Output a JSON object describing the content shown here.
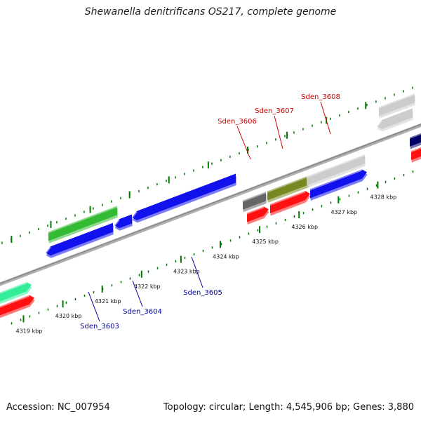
{
  "title": "Shewanella denitrificans OS217, complete genome",
  "footer": {
    "accession": "Accession: NC_007954",
    "summary": "Topology: circular; Length: 4,545,906 bp; Genes: 3,880"
  },
  "colors": {
    "forward_label": "#cc0000",
    "reverse_label": "#000099",
    "tick": "#007700",
    "backbone": "#999999"
  },
  "ticks": [
    {
      "label": "4319 kbp"
    },
    {
      "label": "4320 kbp"
    },
    {
      "label": "4321 kbp"
    },
    {
      "label": "4322 kbp"
    },
    {
      "label": "4323 kbp"
    },
    {
      "label": "4324 kbp"
    },
    {
      "label": "4325 kbp"
    },
    {
      "label": "4326 kbp"
    },
    {
      "label": "4327 kbp"
    },
    {
      "label": "4328 kbp"
    }
  ],
  "gene_labels": [
    {
      "name": "Sden_3603",
      "strand": "reverse"
    },
    {
      "name": "Sden_3604",
      "strand": "reverse"
    },
    {
      "name": "Sden_3605",
      "strand": "reverse"
    },
    {
      "name": "Sden_3606",
      "strand": "forward"
    },
    {
      "name": "Sden_3607",
      "strand": "forward"
    },
    {
      "name": "Sden_3608",
      "strand": "forward"
    }
  ],
  "features": [
    {
      "color": "#33ee99",
      "strand": "forward"
    },
    {
      "color": "#ff1111",
      "strand": "forward"
    },
    {
      "color": "#1111ee",
      "strand": "reverse"
    },
    {
      "color": "#1111ee",
      "strand": "reverse"
    },
    {
      "color": "#1111ee",
      "strand": "reverse"
    },
    {
      "color": "#33bb33",
      "strand": "reverse"
    },
    {
      "color": "#666666",
      "strand": "forward"
    },
    {
      "color": "#778822",
      "strand": "forward"
    },
    {
      "color": "#cccccc",
      "strand": "forward"
    },
    {
      "color": "#ff1111",
      "strand": "forward"
    },
    {
      "color": "#ff1111",
      "strand": "forward"
    },
    {
      "color": "#1111ee",
      "strand": "reverse"
    },
    {
      "color": "#cccccc",
      "strand": "reverse"
    },
    {
      "color": "#cccccc",
      "strand": "forward"
    },
    {
      "color": "#000066",
      "strand": "forward"
    },
    {
      "color": "#ff1111",
      "strand": "forward"
    }
  ]
}
